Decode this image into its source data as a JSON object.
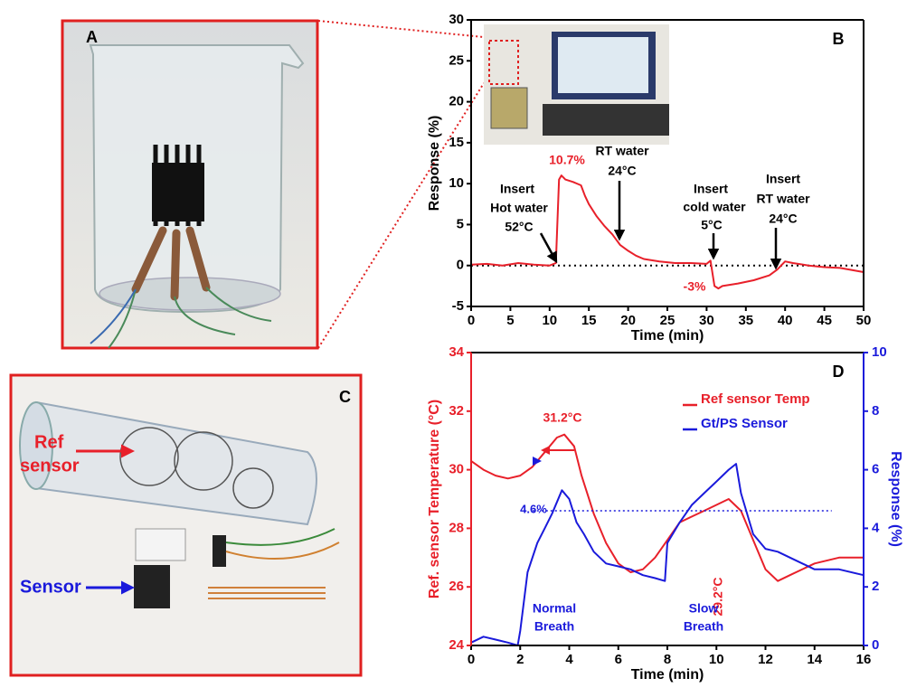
{
  "panel_a": {
    "label": "A"
  },
  "panel_c": {
    "label": "C",
    "ref_label": [
      "Ref",
      "sensor"
    ],
    "sensor_label": "Sensor"
  },
  "chart_data": [
    {
      "type": "line",
      "label": "B",
      "x_label": "Time (min)",
      "y_label": "Response (%)",
      "xlim": [
        0,
        50
      ],
      "xticks": [
        0,
        5,
        10,
        15,
        20,
        25,
        30,
        35,
        40,
        45,
        50
      ],
      "ylim": [
        -5,
        30
      ],
      "yticks": [
        -5,
        0,
        5,
        10,
        15,
        20,
        25,
        30
      ],
      "reference_line": 0,
      "series": [
        {
          "color": "#e8202a",
          "x": [
            0,
            2,
            4,
            6,
            8,
            10,
            10.8,
            11.2,
            11.5,
            12,
            13,
            14,
            14.5,
            15,
            16,
            17,
            18,
            19,
            20,
            21,
            22,
            24,
            26,
            28,
            30,
            30.5,
            31,
            31.5,
            32,
            34,
            36,
            38,
            39,
            40,
            41,
            43,
            45,
            47,
            50
          ],
          "values": [
            0.1,
            0.2,
            0,
            0.3,
            0.1,
            0,
            0.3,
            10.5,
            11,
            10.5,
            10.2,
            9.8,
            8.5,
            7.5,
            6,
            4.8,
            3.8,
            2.5,
            1.8,
            1.2,
            0.8,
            0.5,
            0.3,
            0.3,
            0.2,
            0.6,
            -2.5,
            -2.8,
            -2.5,
            -2.2,
            -1.8,
            -1.2,
            -0.5,
            0.5,
            0.3,
            0,
            -0.2,
            -0.3,
            -0.8
          ]
        }
      ],
      "annotations": [
        {
          "lines": [
            "10.7%"
          ],
          "color": "#e8202a"
        },
        {
          "lines": [
            "RT water",
            "24°C"
          ],
          "color": "#000000"
        },
        {
          "lines": [
            "Insert",
            "Hot water",
            "52°C"
          ],
          "color": "#000000"
        },
        {
          "lines": [
            "Insert",
            "cold water",
            "5°C"
          ],
          "color": "#000000"
        },
        {
          "lines": [
            "Insert",
            "RT water",
            "24°C"
          ],
          "color": "#000000"
        },
        {
          "lines": [
            "-3%"
          ],
          "color": "#e8202a"
        }
      ]
    },
    {
      "type": "line",
      "label": "D",
      "x_label": "Time (min)",
      "y_label": "Ref. sensor Temperature (°C)",
      "y2_label": "Response (%)",
      "xlim": [
        0,
        16
      ],
      "xticks": [
        0,
        2,
        4,
        6,
        8,
        10,
        12,
        14,
        16
      ],
      "ylim": [
        24,
        34
      ],
      "yticks": [
        24,
        26,
        28,
        30,
        32,
        34
      ],
      "y_color": "#e8202a",
      "y2lim": [
        0,
        10
      ],
      "y2ticks": [
        0,
        2,
        4,
        6,
        8,
        10
      ],
      "y2_color": "#1a1adb",
      "legend": "upper right",
      "series": [
        {
          "name": "Ref sensor Temp",
          "color": "#e8202a",
          "x": [
            0,
            0.5,
            1,
            1.5,
            2,
            2.5,
            3,
            3.5,
            3.8,
            4.2,
            4.5,
            5,
            5.5,
            6,
            6.5,
            7,
            7.5,
            8,
            8.5,
            9,
            9.5,
            10,
            10.5,
            11,
            11.5,
            12,
            12.5,
            13,
            14,
            15,
            16
          ],
          "values": [
            30.3,
            30.0,
            29.8,
            29.7,
            29.8,
            30.1,
            30.6,
            31.1,
            31.2,
            30.8,
            29.8,
            28.5,
            27.5,
            26.8,
            26.5,
            26.6,
            27.0,
            27.6,
            28.2,
            28.4,
            28.6,
            28.8,
            29.0,
            28.6,
            27.6,
            26.6,
            26.2,
            26.4,
            26.8,
            27.0,
            27.0
          ]
        },
        {
          "name": "Gt/PS Sensor",
          "color": "#1a1adb",
          "axis": "y2",
          "x": [
            0,
            0.5,
            1,
            1.5,
            1.9,
            2,
            2.3,
            2.7,
            3,
            3.3,
            3.7,
            4,
            4.3,
            4.6,
            5,
            5.5,
            6,
            6.5,
            7,
            7.5,
            7.9,
            8,
            8.5,
            9,
            9.5,
            10,
            10.5,
            10.8,
            11,
            11.5,
            12,
            12.5,
            13,
            13.5,
            14,
            15,
            16
          ],
          "values": [
            0.1,
            0.3,
            0.2,
            0.1,
            0,
            0.5,
            2.5,
            3.5,
            4.0,
            4.5,
            5.3,
            5.0,
            4.2,
            3.8,
            3.2,
            2.8,
            2.7,
            2.6,
            2.4,
            2.3,
            2.2,
            3.5,
            4.2,
            4.8,
            5.2,
            5.6,
            6.0,
            6.2,
            5.2,
            3.8,
            3.3,
            3.2,
            3.0,
            2.8,
            2.6,
            2.6,
            2.4
          ]
        }
      ],
      "reference": {
        "text": "4.6%",
        "value": 4.6,
        "axis": "y2"
      },
      "annotations": [
        {
          "lines": [
            "31.2°C"
          ],
          "color": "#e8202a"
        },
        {
          "lines": [
            "29.2°C"
          ],
          "color": "#e8202a"
        },
        {
          "lines": [
            "Normal",
            "Breath"
          ],
          "color": "#1a1adb"
        },
        {
          "lines": [
            "Slow",
            "Breath"
          ],
          "color": "#1a1adb"
        }
      ]
    }
  ]
}
